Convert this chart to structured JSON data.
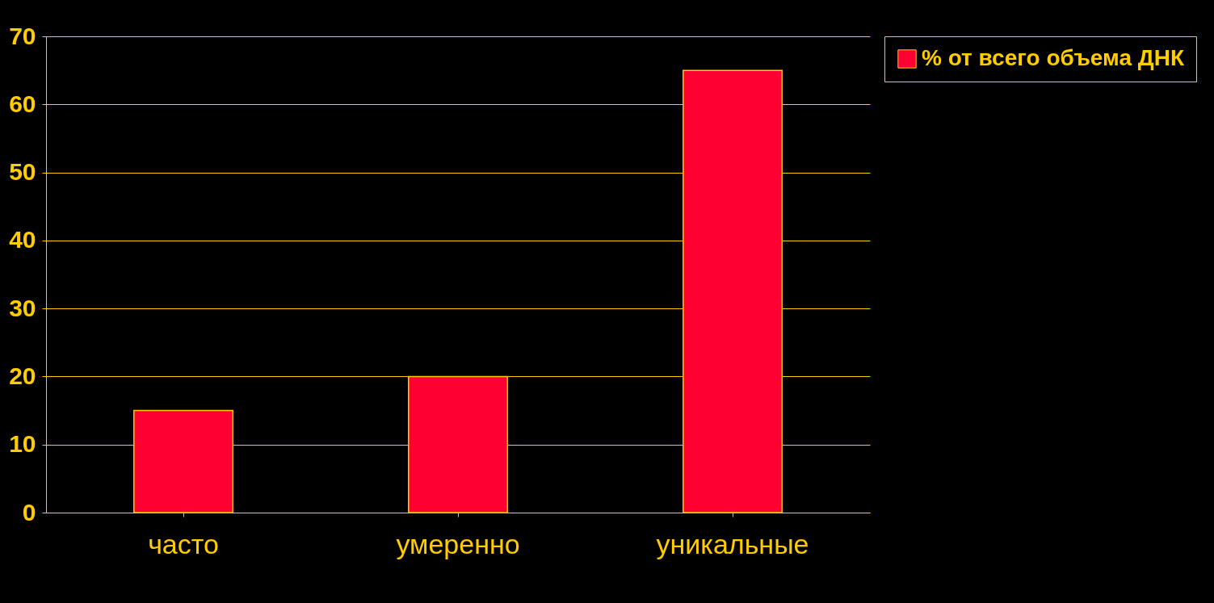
{
  "chart_data": {
    "type": "bar",
    "categories": [
      "часто",
      "умеренно",
      "уникальные"
    ],
    "series": [
      {
        "name": "% от всего объема ДНК",
        "color": "#ff0033",
        "values": [
          15,
          20,
          65
        ]
      }
    ],
    "ylim": [
      0,
      70
    ],
    "yticks": [
      0,
      10,
      20,
      30,
      40,
      50,
      60,
      70
    ],
    "grid": "y",
    "legend": "right"
  }
}
